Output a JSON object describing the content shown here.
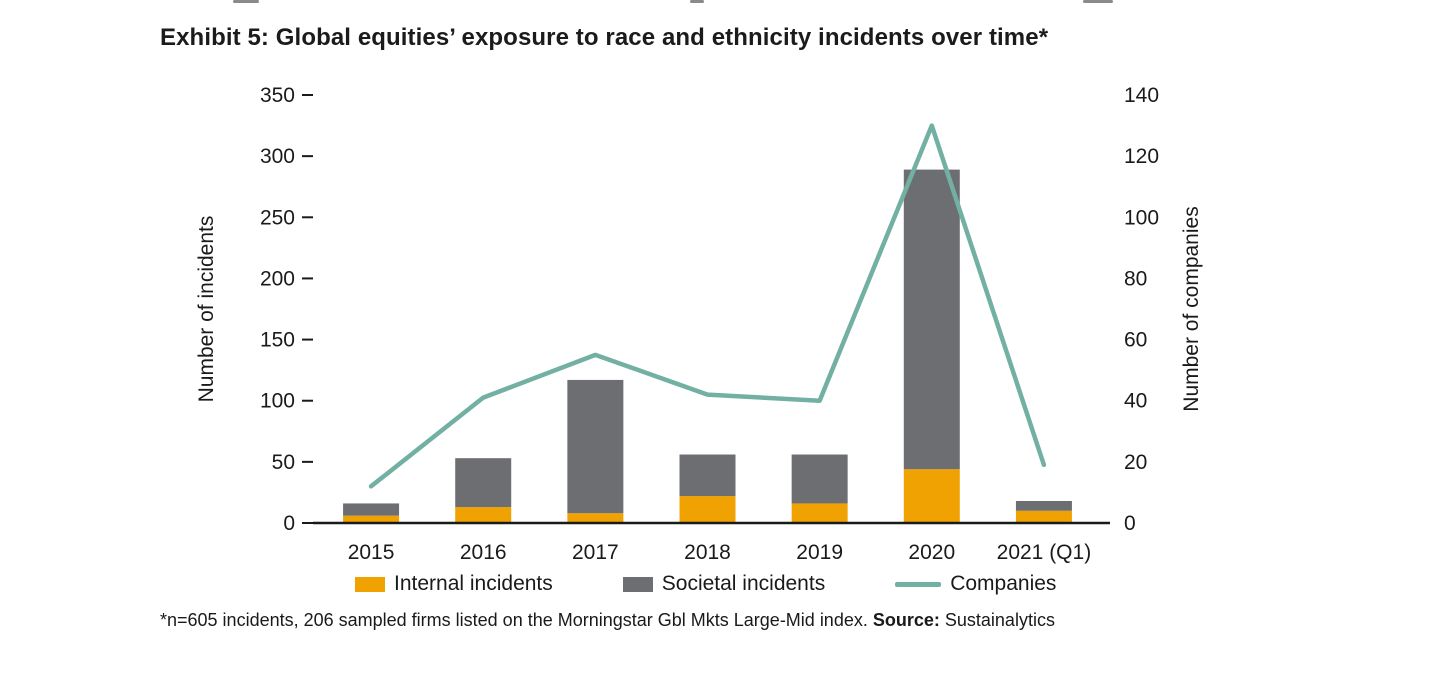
{
  "title": "Exhibit 5: Global equities’ exposure to race and ethnicity incidents over time*",
  "footnote": {
    "text": "*n=605 incidents, 206 sampled firms listed on the Morningstar Gbl Mkts Large-Mid index. ",
    "source_label": "Source:",
    "source_value": " Sustainalytics"
  },
  "chart_data": {
    "type": "bar",
    "subtype": "stacked-bar-with-line",
    "title": "Exhibit 5: Global equities’ exposure to race and ethnicity incidents over time*",
    "categories": [
      "2015",
      "2016",
      "2017",
      "2018",
      "2019",
      "2020",
      "2021 (Q1)"
    ],
    "series": [
      {
        "name": "Internal incidents",
        "type": "bar",
        "stack": "incidents",
        "axis": "left",
        "color": "#F0A202",
        "values": [
          6,
          13,
          8,
          22,
          16,
          44,
          10
        ]
      },
      {
        "name": "Societal incidents",
        "type": "bar",
        "stack": "incidents",
        "axis": "left",
        "color": "#6D6E71",
        "values": [
          10,
          40,
          109,
          34,
          40,
          245,
          8
        ]
      },
      {
        "name": "Companies",
        "type": "line",
        "axis": "right",
        "color": "#72B0A3",
        "values": [
          12,
          41,
          55,
          42,
          40,
          130,
          19
        ]
      }
    ],
    "stacked_totals": [
      16,
      53,
      117,
      56,
      56,
      289,
      18
    ],
    "left_axis": {
      "label": "Number of incidents",
      "min": 0,
      "max": 350,
      "ticks": [
        0,
        50,
        100,
        150,
        200,
        250,
        300,
        350
      ]
    },
    "right_axis": {
      "label": "Number of companies",
      "min": 0,
      "max": 140,
      "ticks": [
        0,
        20,
        40,
        60,
        80,
        100,
        120,
        140
      ]
    },
    "legend": [
      "Internal incidents",
      "Societal incidents",
      "Companies"
    ],
    "legend_position": "bottom",
    "grid": false
  }
}
